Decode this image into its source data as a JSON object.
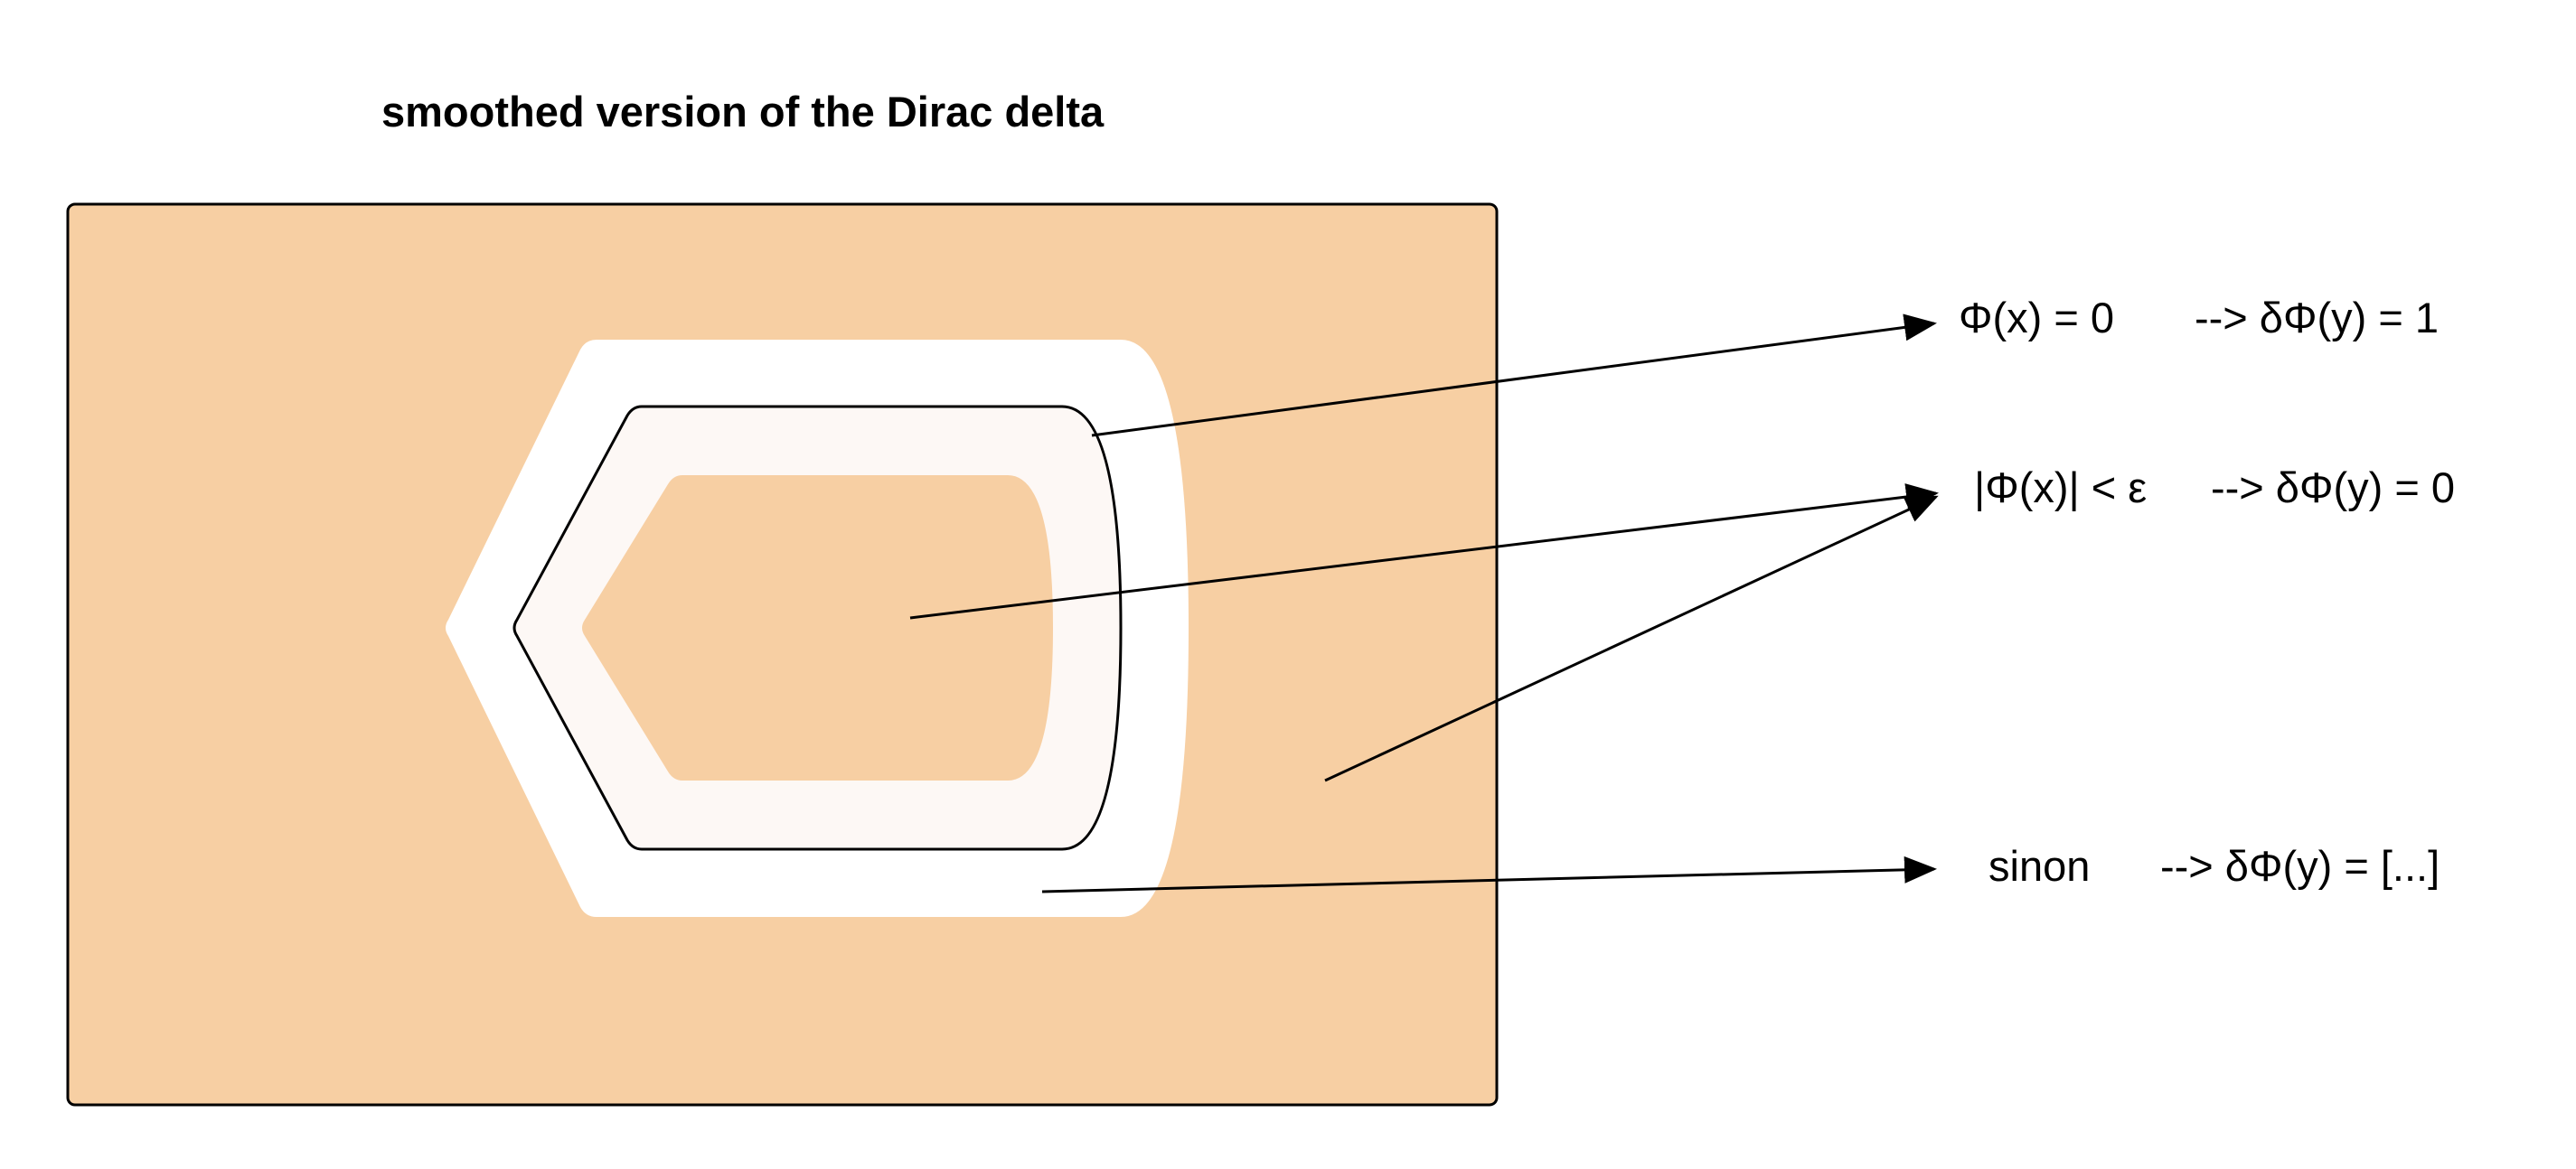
{
  "diagram": {
    "title": "smoothed version of the Dirac delta",
    "colors": {
      "region_fill": "#f7cfa3",
      "band_fill": "#ffffff",
      "inner_band_fill": "#fdf8f5",
      "stroke": "#000000"
    },
    "labels": [
      {
        "id": "zero",
        "condition": "Φ(x) = 0",
        "result": "--> δΦ(y) = 1"
      },
      {
        "id": "eps",
        "condition": "|Φ(x)| < ε",
        "result": "--> δΦ(y) = 0"
      },
      {
        "id": "else",
        "condition": "sinon",
        "result": "--> δΦ(y) = [...]"
      }
    ]
  }
}
